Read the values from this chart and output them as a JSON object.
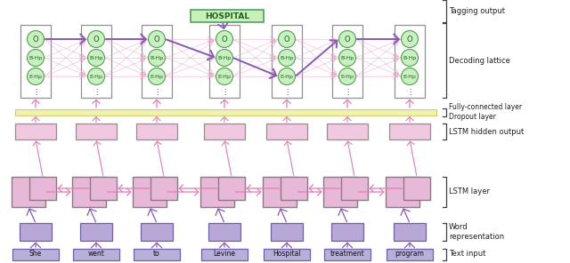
{
  "words": [
    "She",
    "went",
    "to",
    "Levine",
    "Hospital",
    "treatment",
    "program"
  ],
  "fig_width": 6.4,
  "fig_height": 2.96,
  "colors": {
    "text_input_box": "#b8b0d8",
    "word_repr_box": "#b8a8d8",
    "lstm_box_fill": "#e8b8d8",
    "lstm_box_edge": "#808080",
    "lstm_hidden_fill": "#f0c8e0",
    "lstm_hidden_edge": "#909090",
    "fc_bar_fill": "#f0f0b0",
    "fc_bar_edge": "#d0d070",
    "crf_box_fill": "#ffffff",
    "crf_box_edge": "#909090",
    "crf_circle_fill": "#c8f0c0",
    "crf_circle_edge": "#50a050",
    "hospital_fill": "#c8f0b8",
    "hospital_edge": "#50a060",
    "arrow_pink": "#e878b8",
    "arrow_purple": "#8858b8",
    "lattice_line": "#f0a8d0",
    "bracket_color": "#404040",
    "label_color": "#202020"
  },
  "labels": {
    "tagging_output": "Tagging output",
    "decoding_lattice": "Decoding lattice",
    "fc_dropout": "Fully-connected layer\nDropout layer",
    "lstm_hidden": "LSTM hidden output",
    "lstm_layer": "LSTM layer",
    "word_repr": "Word\nrepresentation",
    "text_input": "Text input",
    "hospital": "HOSPITAL"
  }
}
